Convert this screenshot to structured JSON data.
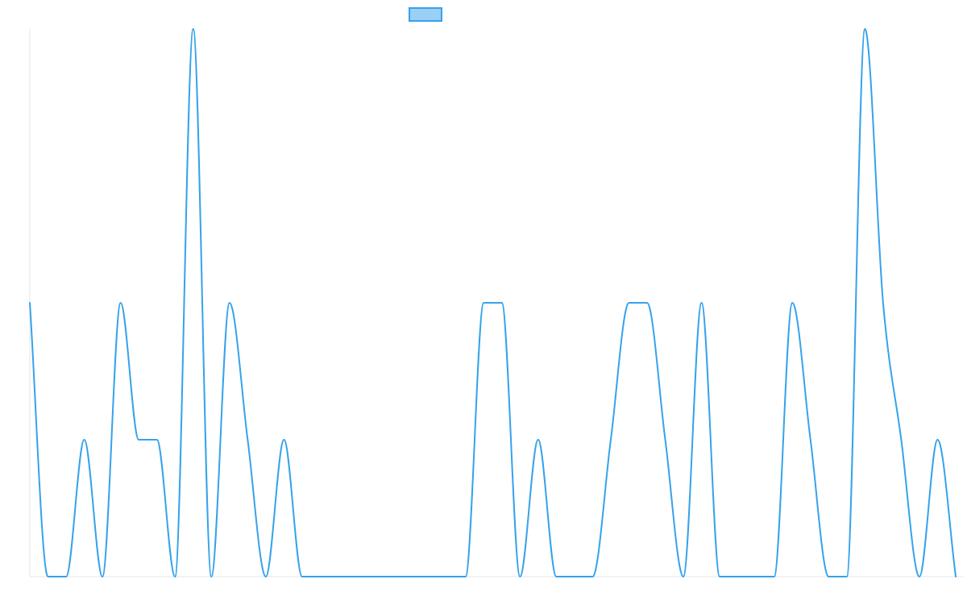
{
  "chart_data": {
    "type": "line",
    "title": "",
    "xlabel": "",
    "ylabel": "",
    "x": [
      0,
      1,
      2,
      3,
      4,
      5,
      6,
      7,
      8,
      9,
      10,
      11,
      12,
      13,
      14,
      15,
      16,
      17,
      18,
      19,
      20,
      21,
      22,
      23,
      24,
      25,
      26,
      27,
      28,
      29,
      30,
      31,
      32,
      33,
      34,
      35,
      36,
      37,
      38,
      39,
      40,
      41,
      42,
      43,
      44,
      45,
      46,
      47,
      48,
      49,
      50,
      51
    ],
    "ylim": [
      0,
      4
    ],
    "grid": false,
    "legend_position": "top-center",
    "series": [
      {
        "name": "",
        "color": "#36a2eb",
        "fill": "#9ad0f5",
        "values": [
          2,
          0,
          0,
          1,
          0,
          2,
          1,
          1,
          0,
          4,
          0,
          2,
          1,
          0,
          1,
          0,
          0,
          0,
          0,
          0,
          0,
          0,
          0,
          0,
          0,
          2,
          2,
          0,
          1,
          0,
          0,
          0,
          1,
          2,
          2,
          1,
          0,
          2,
          0,
          0,
          0,
          0,
          2,
          1,
          0,
          0,
          4,
          2,
          1,
          0,
          1,
          0
        ]
      }
    ]
  }
}
